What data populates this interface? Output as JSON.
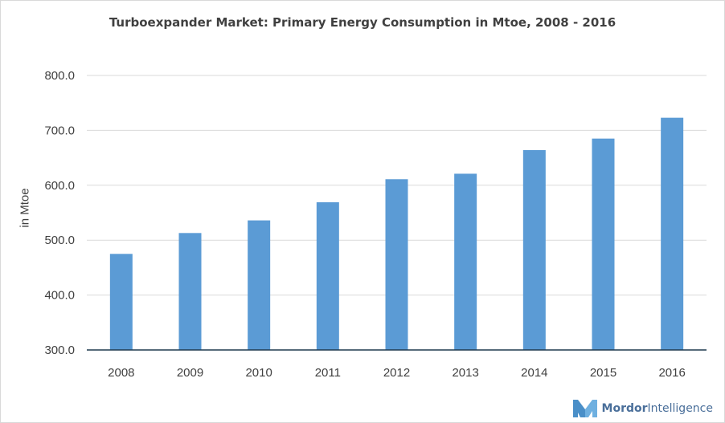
{
  "chart_data": {
    "type": "bar",
    "title": "Turboexpander Market: Primary Energy Consumption in Mtoe, 2008 - 2016",
    "xlabel": "",
    "ylabel": "in Mtoe",
    "categories": [
      "2008",
      "2009",
      "2010",
      "2011",
      "2012",
      "2013",
      "2014",
      "2015",
      "2016"
    ],
    "values": [
      475,
      513,
      536,
      569,
      611,
      621,
      664,
      685,
      723
    ],
    "ylim": [
      300,
      800
    ],
    "yticks": [
      "300.0",
      "400.0",
      "500.0",
      "600.0",
      "700.0",
      "800.0"
    ],
    "grid": true,
    "legend": "none",
    "colors": {
      "bar": "#5b9bd5",
      "grid": "#d9d9d9",
      "axis": "#1f3a4f",
      "text": "#404040"
    }
  },
  "brand": {
    "name_bold": "Mordor",
    "name_rest": "Intelligence",
    "logo_icon": "mordor-logo-icon",
    "colors": {
      "logo": "#4a8fc8",
      "text": "#4a6f9a"
    }
  }
}
